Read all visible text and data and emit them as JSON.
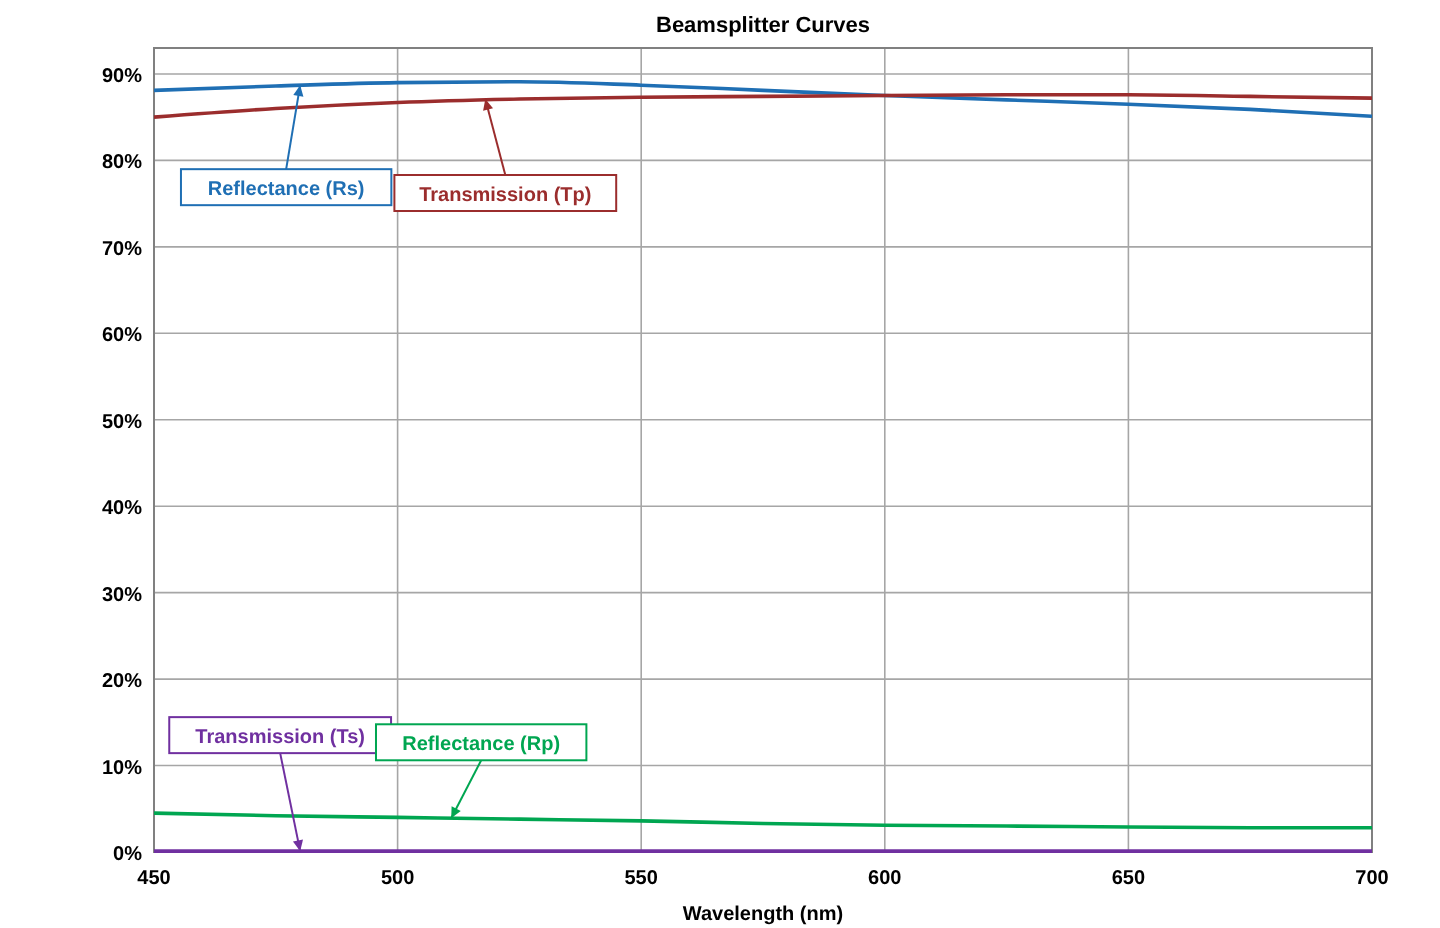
{
  "chart_data": {
    "type": "line",
    "title": "Beamsplitter Curves",
    "xlabel": "Wavelength (nm)",
    "x": [
      450,
      475,
      500,
      525,
      550,
      575,
      600,
      625,
      650,
      675,
      700
    ],
    "series": [
      {
        "color": "#1f6fb4",
        "values": [
          88.1,
          88.6,
          89.0,
          89.1,
          88.7,
          88.1,
          87.5,
          87.0,
          86.5,
          85.9,
          85.1
        ]
      },
      {
        "color": "#9b2d2d",
        "values": [
          85.0,
          86.0,
          86.7,
          87.1,
          87.3,
          87.4,
          87.5,
          87.6,
          87.6,
          87.4,
          87.2
        ]
      },
      {
        "color": "#7030a0",
        "values": [
          0.1,
          0.1,
          0.1,
          0.1,
          0.1,
          0.1,
          0.1,
          0.1,
          0.1,
          0.1,
          0.1
        ]
      },
      {
        "color": "#00a651",
        "values": [
          4.5,
          4.2,
          4.0,
          3.8,
          3.6,
          3.3,
          3.1,
          3.0,
          2.9,
          2.8,
          2.8
        ]
      }
    ],
    "annotations": [
      {
        "text": "Reflectance (Rs)",
        "x": 480,
        "y": 88.7
      },
      {
        "text": "Transmission (Tp)",
        "x": 518,
        "y": 87.1
      },
      {
        "text": "Transmission (Ts)",
        "x": 480,
        "y": 0.1
      },
      {
        "text": "Reflectance (Rp)",
        "x": 511,
        "y": 3.9
      }
    ],
    "xlim": [
      450,
      700
    ],
    "xticks": [
      450,
      500,
      550,
      600,
      650,
      700
    ],
    "ylim": [
      0,
      93
    ],
    "yticks": [
      {
        "value": 0,
        "label": "0%"
      },
      {
        "value": 10,
        "label": "10%"
      },
      {
        "value": 20,
        "label": "20%"
      },
      {
        "value": 30,
        "label": "30%"
      },
      {
        "value": 40,
        "label": "40%"
      },
      {
        "value": 50,
        "label": "50%"
      },
      {
        "value": 60,
        "label": "60%"
      },
      {
        "value": 70,
        "label": "70%"
      },
      {
        "value": 80,
        "label": "80%"
      },
      {
        "value": 90,
        "label": "90%"
      }
    ],
    "grid": true,
    "line_style": "solid",
    "marker": "none"
  }
}
